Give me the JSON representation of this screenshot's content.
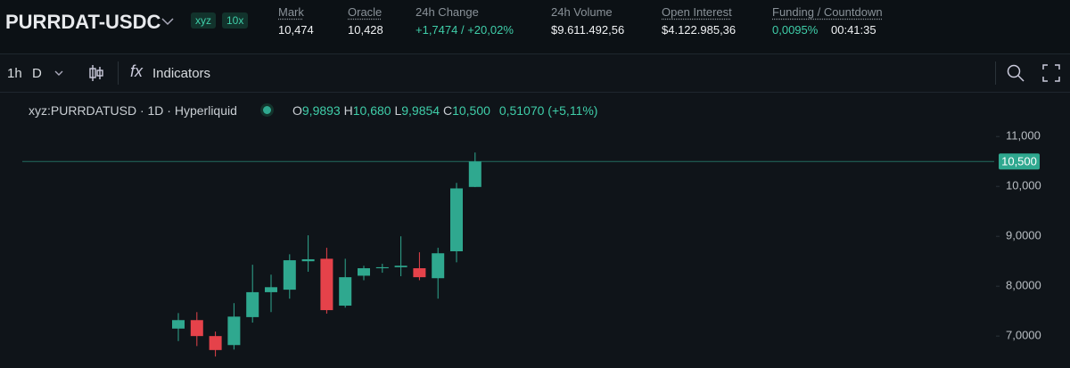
{
  "header": {
    "symbol": "PURRDAT-USDC",
    "badges": [
      "xyz",
      "10x"
    ],
    "stats": [
      {
        "label": "Mark",
        "value": "10,474"
      },
      {
        "label": "Oracle",
        "value": "10,428"
      },
      {
        "label": "24h Change",
        "value": "+1,7474 / +20,02%"
      },
      {
        "label": "24h Volume",
        "value": "$9.611.492,56"
      },
      {
        "label": "Open Interest",
        "value": "$4.122.985,36"
      },
      {
        "label": "Funding / Countdown",
        "value": "0,0095%",
        "countdown": "00:41:35"
      }
    ]
  },
  "toolbar": {
    "interval": "1h",
    "range": "D",
    "indicators": "Indicators"
  },
  "legend": {
    "symbol": "xyz:PURRDATUSD · 1D · Hyperliquid",
    "o_label": "O",
    "o": "9,9893",
    "h_label": "H",
    "h": "10,680",
    "l_label": "L",
    "l": "9,9854",
    "c_label": "C",
    "c": "10,500",
    "change": "0,51070 (+5,11%)"
  },
  "chart_data": {
    "type": "candlestick",
    "categories": [
      null,
      null,
      null,
      null,
      null,
      null,
      null,
      null,
      null,
      null,
      null,
      null,
      null,
      null,
      null,
      null,
      null
    ],
    "open": [
      7.15,
      7.32,
      7.0,
      6.82,
      7.38,
      7.88,
      7.93,
      8.5,
      8.55,
      7.61,
      8.21,
      8.36,
      8.38,
      8.36,
      8.16,
      8.7,
      9.9893
    ],
    "high": [
      7.46,
      7.48,
      7.09,
      7.66,
      8.43,
      8.23,
      8.64,
      9.02,
      8.77,
      8.55,
      8.41,
      8.45,
      9.0,
      8.68,
      8.77,
      10.07,
      10.68
    ],
    "low": [
      6.9,
      6.8,
      6.59,
      6.73,
      7.27,
      7.48,
      7.75,
      8.29,
      7.45,
      7.57,
      8.12,
      8.27,
      8.2,
      8.12,
      7.75,
      8.48,
      9.9854
    ],
    "close": [
      7.32,
      7.0,
      6.72,
      7.39,
      7.88,
      7.98,
      8.52,
      8.54,
      7.52,
      8.18,
      8.36,
      8.38,
      8.41,
      8.18,
      8.66,
      9.96,
      10.5
    ],
    "up_color": "#2fa88f",
    "down_color": "#e5424a",
    "ylim": [
      6.36,
      11.29
    ],
    "yticks": [
      {
        "value": 7,
        "label": "7,0000"
      },
      {
        "value": 8,
        "label": "8,0000"
      },
      {
        "value": 9,
        "label": "9,0000"
      },
      {
        "value": 10,
        "label": "10,000"
      },
      {
        "value": 11,
        "label": "11,000"
      }
    ],
    "last_price": {
      "value": 10.5,
      "label": "10,500"
    }
  }
}
